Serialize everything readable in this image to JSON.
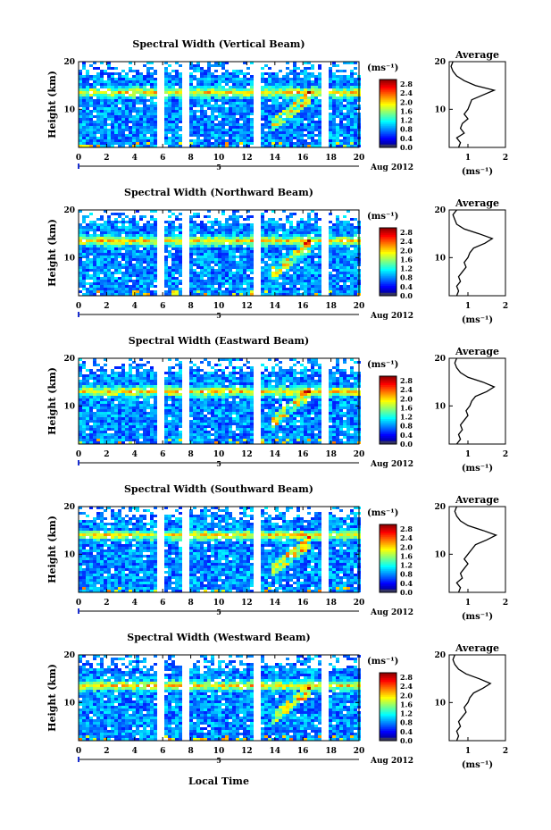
{
  "figure": {
    "xlabel_bottom": "Local Time",
    "date_label": "Aug 2012",
    "day_marker": "5",
    "unit_label": "(ms⁻¹)",
    "avg_title": "Average"
  },
  "chart_data": [
    {
      "type": "heatmap",
      "title": "Spectral Width (Vertical Beam)",
      "xlabel": "",
      "ylabel": "Height (km)",
      "xlim": [
        0,
        20
      ],
      "ylim": [
        2,
        20
      ],
      "x_ticks": [
        0,
        2,
        4,
        6,
        8,
        10,
        12,
        14,
        16,
        18,
        20
      ],
      "y_ticks": [
        10,
        20
      ],
      "colorbar": {
        "label": "(ms⁻¹)",
        "range": [
          0,
          3.0
        ],
        "ticks": [
          0.0,
          0.4,
          0.8,
          1.2,
          1.6,
          2.0,
          2.4,
          2.8
        ]
      },
      "data_gaps_hours": [
        [
          5.6,
          6.1
        ],
        [
          7.3,
          7.8
        ],
        [
          12.4,
          12.9
        ],
        [
          17.3,
          17.8
        ]
      ],
      "enhanced_layer_km": 13.5,
      "average_profile": {
        "title": "Average",
        "xlabel": "(ms⁻¹)",
        "xlim": [
          0.5,
          2.0
        ],
        "x_ticks": [
          1,
          2
        ],
        "y_ticks": [
          10,
          20
        ],
        "height_km": [
          2,
          3,
          4,
          5,
          6,
          7,
          8,
          9,
          10,
          11,
          12,
          13,
          14,
          15,
          16,
          17,
          18,
          19,
          20
        ],
        "width": [
          0.75,
          0.8,
          0.7,
          0.9,
          0.8,
          0.85,
          1.0,
          0.9,
          1.0,
          1.05,
          1.1,
          1.4,
          1.7,
          1.2,
          0.9,
          0.7,
          0.6,
          0.55,
          0.6
        ]
      }
    },
    {
      "type": "heatmap",
      "title": "Spectral Width (Northward Beam)",
      "xlabel": "",
      "ylabel": "Height (km)",
      "xlim": [
        0,
        20
      ],
      "ylim": [
        2,
        20
      ],
      "x_ticks": [
        0,
        2,
        4,
        6,
        8,
        10,
        12,
        14,
        16,
        18,
        20
      ],
      "y_ticks": [
        10,
        20
      ],
      "colorbar": {
        "label": "(ms⁻¹)",
        "range": [
          0,
          3.0
        ],
        "ticks": [
          0.0,
          0.4,
          0.8,
          1.2,
          1.6,
          2.0,
          2.4,
          2.8
        ]
      },
      "data_gaps_hours": [
        [
          5.6,
          6.1
        ],
        [
          7.3,
          7.8
        ],
        [
          12.4,
          12.9
        ],
        [
          17.3,
          17.8
        ]
      ],
      "enhanced_layer_km": 13.5,
      "average_profile": {
        "title": "Average",
        "xlabel": "(ms⁻¹)",
        "xlim": [
          0.5,
          2.0
        ],
        "x_ticks": [
          1,
          2
        ],
        "y_ticks": [
          10,
          20
        ],
        "height_km": [
          2,
          3,
          4,
          5,
          6,
          7,
          8,
          9,
          10,
          11,
          12,
          13,
          14,
          15,
          16,
          17,
          18,
          19,
          20
        ],
        "width": [
          0.7,
          0.75,
          0.7,
          0.8,
          0.75,
          0.85,
          0.95,
          0.9,
          1.0,
          1.05,
          1.15,
          1.45,
          1.65,
          1.3,
          0.9,
          0.7,
          0.65,
          0.6,
          0.7
        ]
      }
    },
    {
      "type": "heatmap",
      "title": "Spectral Width (Eastward Beam)",
      "xlabel": "",
      "ylabel": "Height (km)",
      "xlim": [
        0,
        20
      ],
      "ylim": [
        2,
        20
      ],
      "x_ticks": [
        0,
        2,
        4,
        6,
        8,
        10,
        12,
        14,
        16,
        18,
        20
      ],
      "y_ticks": [
        10,
        20
      ],
      "colorbar": {
        "label": "(ms⁻¹)",
        "range": [
          0,
          3.0
        ],
        "ticks": [
          0.0,
          0.4,
          0.8,
          1.2,
          1.6,
          2.0,
          2.4,
          2.8
        ]
      },
      "data_gaps_hours": [
        [
          5.6,
          6.1
        ],
        [
          7.3,
          7.8
        ],
        [
          12.4,
          12.9
        ],
        [
          17.3,
          17.8
        ]
      ],
      "enhanced_layer_km": 13.0,
      "average_profile": {
        "title": "Average",
        "xlabel": "(ms⁻¹)",
        "xlim": [
          0.5,
          2.0
        ],
        "x_ticks": [
          1,
          2
        ],
        "y_ticks": [
          10,
          20
        ],
        "height_km": [
          2,
          3,
          4,
          5,
          6,
          7,
          8,
          9,
          10,
          11,
          12,
          13,
          14,
          15,
          16,
          17,
          18,
          19,
          20
        ],
        "width": [
          0.7,
          0.8,
          0.75,
          0.85,
          0.8,
          0.9,
          1.0,
          0.95,
          1.05,
          1.1,
          1.2,
          1.5,
          1.7,
          1.4,
          1.0,
          0.8,
          0.7,
          0.65,
          0.7
        ]
      }
    },
    {
      "type": "heatmap",
      "title": "Spectral Width (Southward Beam)",
      "xlabel": "",
      "ylabel": "Height (km)",
      "xlim": [
        0,
        20
      ],
      "ylim": [
        2,
        20
      ],
      "x_ticks": [
        0,
        2,
        4,
        6,
        8,
        10,
        12,
        14,
        16,
        18,
        20
      ],
      "y_ticks": [
        10,
        20
      ],
      "colorbar": {
        "label": "(ms⁻¹)",
        "range": [
          0,
          3.0
        ],
        "ticks": [
          0.0,
          0.4,
          0.8,
          1.2,
          1.6,
          2.0,
          2.4,
          2.8
        ]
      },
      "data_gaps_hours": [
        [
          5.6,
          6.1
        ],
        [
          7.3,
          7.8
        ],
        [
          12.4,
          12.9
        ],
        [
          17.3,
          17.8
        ]
      ],
      "enhanced_layer_km": 14.0,
      "average_profile": {
        "title": "Average",
        "xlabel": "(ms⁻¹)",
        "xlim": [
          0.5,
          2.0
        ],
        "x_ticks": [
          1,
          2
        ],
        "y_ticks": [
          10,
          20
        ],
        "height_km": [
          2,
          3,
          4,
          5,
          6,
          7,
          8,
          9,
          10,
          11,
          12,
          13,
          14,
          15,
          16,
          17,
          18,
          19,
          20
        ],
        "width": [
          0.75,
          0.8,
          0.7,
          0.85,
          0.8,
          0.9,
          1.0,
          0.9,
          1.0,
          1.1,
          1.2,
          1.5,
          1.75,
          1.4,
          1.0,
          0.8,
          0.7,
          0.65,
          0.7
        ]
      }
    },
    {
      "type": "heatmap",
      "title": "Spectral Width (Westward Beam)",
      "xlabel": "Local Time",
      "ylabel": "Height (km)",
      "xlim": [
        0,
        20
      ],
      "ylim": [
        2,
        20
      ],
      "x_ticks": [
        0,
        2,
        4,
        6,
        8,
        10,
        12,
        14,
        16,
        18,
        20
      ],
      "y_ticks": [
        10,
        20
      ],
      "colorbar": {
        "label": "(ms⁻¹)",
        "range": [
          0,
          3.0
        ],
        "ticks": [
          0.0,
          0.4,
          0.8,
          1.2,
          1.6,
          2.0,
          2.4,
          2.8
        ]
      },
      "data_gaps_hours": [
        [
          5.6,
          6.1
        ],
        [
          7.3,
          7.8
        ],
        [
          12.4,
          12.9
        ],
        [
          17.3,
          17.8
        ]
      ],
      "enhanced_layer_km": 13.5,
      "average_profile": {
        "title": "Average",
        "xlabel": "(ms⁻¹)",
        "xlim": [
          0.5,
          2.0
        ],
        "x_ticks": [
          1,
          2
        ],
        "y_ticks": [
          10,
          20
        ],
        "height_km": [
          2,
          3,
          4,
          5,
          6,
          7,
          8,
          9,
          10,
          11,
          12,
          13,
          14,
          15,
          16,
          17,
          18,
          19,
          20
        ],
        "width": [
          0.7,
          0.75,
          0.7,
          0.8,
          0.75,
          0.85,
          0.95,
          0.9,
          1.0,
          1.05,
          1.15,
          1.4,
          1.6,
          1.3,
          0.95,
          0.75,
          0.65,
          0.6,
          0.65
        ]
      }
    }
  ]
}
